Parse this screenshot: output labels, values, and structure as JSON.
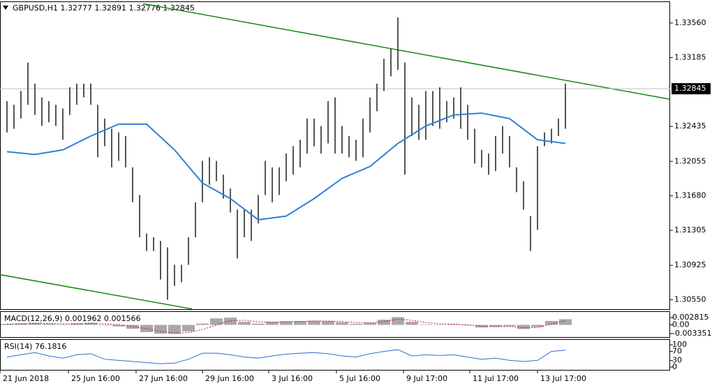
{
  "chart_data": {
    "type": "range_bar",
    "header": "GBPUSD,H1  1.32777 1.32891 1.32776 1.32845",
    "bar_color": "#2a2a2a",
    "high": [
      1.3271,
      1.3267,
      1.3282,
      1.3313,
      1.329,
      1.3275,
      1.3271,
      1.3267,
      1.3263,
      1.3286,
      1.329,
      1.329,
      1.329,
      1.3267,
      1.3252,
      1.3241,
      1.3237,
      1.3233,
      1.3199,
      1.3169,
      1.3127,
      1.3123,
      1.3119,
      1.3112,
      1.3093,
      1.3093,
      1.3123,
      1.3161,
      1.3206,
      1.321,
      1.3206,
      1.3191,
      1.3176,
      1.3153,
      1.3153,
      1.3153,
      1.3169,
      1.3206,
      1.3199,
      1.3199,
      1.3214,
      1.3222,
      1.3229,
      1.3252,
      1.3252,
      1.3244,
      1.3271,
      1.3275,
      1.3244,
      1.3233,
      1.3229,
      1.3252,
      1.3275,
      1.329,
      1.3317,
      1.3328,
      1.3362,
      1.3313,
      1.3275,
      1.3267,
      1.3282,
      1.3282,
      1.3286,
      1.3271,
      1.3275,
      1.3286,
      1.3267,
      1.3241,
      1.3218,
      1.3214,
      1.3233,
      1.3244,
      1.3233,
      1.3199,
      1.3184,
      1.3146,
      1.3222,
      1.3237,
      1.3241,
      1.3252,
      1.329
    ],
    "low": [
      1.3237,
      1.3241,
      1.3252,
      1.3267,
      1.3256,
      1.3244,
      1.3248,
      1.3244,
      1.3229,
      1.3256,
      1.3267,
      1.3275,
      1.3267,
      1.321,
      1.3222,
      1.3199,
      1.3206,
      1.3199,
      1.3161,
      1.3123,
      1.3108,
      1.3108,
      1.3077,
      1.3055,
      1.307,
      1.3074,
      1.3093,
      1.3123,
      1.3161,
      1.318,
      1.3184,
      1.3165,
      1.315,
      1.31,
      1.3123,
      1.3119,
      1.3138,
      1.3169,
      1.3161,
      1.3169,
      1.3184,
      1.3191,
      1.3199,
      1.3214,
      1.3222,
      1.3214,
      1.3225,
      1.3214,
      1.3214,
      1.321,
      1.3206,
      1.321,
      1.3237,
      1.326,
      1.3282,
      1.3298,
      1.3305,
      1.3191,
      1.3233,
      1.3229,
      1.3229,
      1.3244,
      1.3241,
      1.3248,
      1.3252,
      1.3241,
      1.3229,
      1.3203,
      1.3199,
      1.3191,
      1.3195,
      1.3214,
      1.3199,
      1.3172,
      1.3153,
      1.3108,
      1.3131,
      1.3222,
      1.3225,
      1.3233,
      1.3241
    ],
    "ma": {
      "color": "#2f80d8",
      "x": [
        0,
        4,
        8,
        12,
        16,
        20,
        24,
        28,
        32,
        36,
        40,
        44,
        48,
        52,
        56,
        60,
        64,
        68,
        72,
        76,
        80
      ],
      "values": [
        1.3216,
        1.3213,
        1.3218,
        1.3233,
        1.3246,
        1.3246,
        1.3218,
        1.3182,
        1.3165,
        1.3142,
        1.3146,
        1.3165,
        1.3187,
        1.32,
        1.3225,
        1.3244,
        1.3256,
        1.3258,
        1.3252,
        1.3229,
        1.3225
      ]
    },
    "trendline_color": "#17861a",
    "trendlines": [
      {
        "x": [
          19.5,
          95
        ],
        "values": [
          1.3377,
          1.3273
        ]
      },
      {
        "x": [
          -1.5,
          26.5
        ],
        "values": [
          1.3083,
          1.3045
        ]
      }
    ],
    "last_price": 1.32845,
    "xlim": [
      -1,
      95
    ],
    "ylim": [
      1.30448,
      1.3381
    ],
    "yticks": [
      {
        "value": 1.3356,
        "label": "1.33560"
      },
      1.33185,
      1.32435,
      1.32055,
      {
        "value": 1.3168,
        "label": "1.31680"
      },
      1.31305,
      1.30925,
      {
        "value": 1.3055,
        "label": "1.30550"
      }
    ],
    "xticks": [
      {
        "value": -1,
        "label": "21 Jun 2018"
      },
      {
        "value": 8.8,
        "label": "25 Jun 16:00"
      },
      {
        "value": 18.5,
        "label": "27 Jun 16:00"
      },
      {
        "value": 28,
        "label": "29 Jun 16:00"
      },
      {
        "value": 37.5,
        "label": "3 Jul 16:00"
      },
      {
        "value": 47.2,
        "label": "5 Jul 16:00"
      },
      {
        "value": 56.8,
        "label": "9 Jul 17:00"
      },
      {
        "value": 66.3,
        "label": "11 Jul 17:00"
      },
      {
        "value": 76,
        "label": "13 Jul 17:00"
      }
    ],
    "macd": {
      "label": "MACD(12,26,9) 0.001962 0.001566",
      "histogram_color": "#a8a8a8",
      "signal_color": "#d01010",
      "x": [
        0,
        2,
        4,
        6,
        8,
        10,
        12,
        14,
        16,
        18,
        20,
        22,
        24,
        26,
        28,
        30,
        32,
        34,
        36,
        38,
        40,
        42,
        44,
        46,
        48,
        50,
        52,
        54,
        56,
        58,
        60,
        62,
        64,
        66,
        68,
        70,
        72,
        74,
        76,
        78,
        80
      ],
      "histogram": [
        0.0004,
        0.0006,
        0.0008,
        0.0004,
        0.0002,
        0.0006,
        0.0008,
        -0.0002,
        -0.0006,
        -0.0015,
        -0.0028,
        -0.0034,
        -0.0035,
        -0.0025,
        0.0005,
        0.0025,
        0.0028,
        0.0012,
        0.0005,
        0.0012,
        0.0014,
        0.0015,
        0.0016,
        0.0015,
        0.001,
        0.0004,
        0.0008,
        0.002,
        0.003,
        0.0012,
        0.0002,
        0.0,
        0.0003,
        -0.0002,
        -0.001,
        -0.0008,
        -0.0005,
        -0.0016,
        -0.0008,
        0.0015,
        0.0022
      ],
      "signal": [
        0.0003,
        0.0004,
        0.0006,
        0.0006,
        0.0004,
        0.0004,
        0.0006,
        0.0004,
        0.0001,
        -0.0006,
        -0.0015,
        -0.0025,
        -0.0031,
        -0.003,
        -0.0018,
        0.0,
        0.0016,
        0.0018,
        0.0012,
        0.001,
        0.0012,
        0.0013,
        0.0015,
        0.0015,
        0.0013,
        0.0009,
        0.0008,
        0.0013,
        0.0022,
        0.0018,
        0.0009,
        0.0004,
        0.0003,
        0.0,
        -0.0005,
        -0.0007,
        -0.0006,
        -0.0011,
        -0.001,
        0.0003,
        0.0016
      ],
      "ylim": [
        -0.0047,
        0.005
      ],
      "yticks": [
        0.002815,
        {
          "value": 0,
          "label": "0.00"
        },
        -0.003351
      ]
    },
    "rsi": {
      "label": "RSI(14) 76.1816",
      "color": "#2a6fd0",
      "x": [
        0,
        2,
        4,
        6,
        8,
        10,
        12,
        14,
        16,
        18,
        20,
        22,
        24,
        26,
        28,
        30,
        32,
        34,
        36,
        38,
        40,
        42,
        44,
        46,
        48,
        50,
        52,
        54,
        56,
        58,
        60,
        62,
        64,
        66,
        68,
        70,
        72,
        74,
        76,
        78,
        80
      ],
      "values": [
        45,
        55,
        65,
        50,
        40,
        55,
        60,
        35,
        30,
        25,
        20,
        15,
        18,
        35,
        62,
        62,
        55,
        45,
        40,
        50,
        58,
        62,
        65,
        60,
        50,
        45,
        60,
        70,
        78,
        50,
        55,
        52,
        55,
        45,
        35,
        40,
        30,
        25,
        30,
        70,
        76
      ],
      "ylim": [
        -12.5,
        122
      ],
      "yticks": [
        100,
        70,
        30,
        0
      ]
    }
  }
}
